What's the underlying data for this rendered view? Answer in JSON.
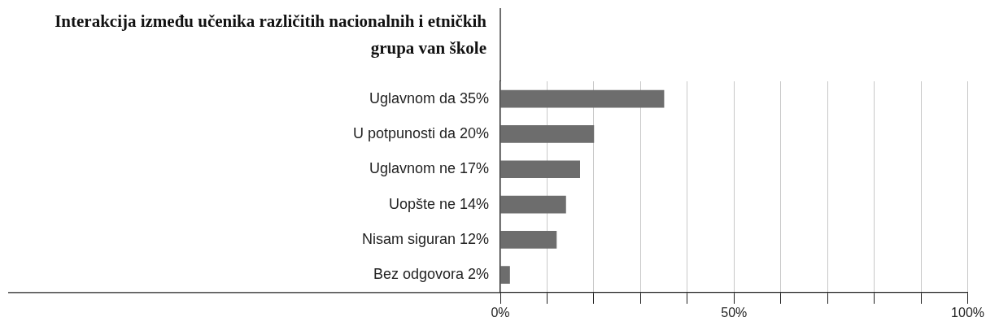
{
  "chart_data": {
    "type": "bar",
    "orientation": "horizontal",
    "title": "Interakcija između učenika različitih nacionalnih i etničkih grupa van škole",
    "categories": [
      "Uglavnom da 35%",
      "U potpunosti da 20%",
      "Uglavnom ne 17%",
      "Uopšte ne 14%",
      "Nisam siguran 12%",
      "Bez odgovora 2%"
    ],
    "values": [
      35,
      20,
      17,
      14,
      12,
      2
    ],
    "color": "#6d6d6d",
    "xlim": [
      0,
      100
    ],
    "xticks": [
      {
        "value": 0,
        "label": "0%"
      },
      {
        "value": 10,
        "label": null
      },
      {
        "value": 20,
        "label": null
      },
      {
        "value": 30,
        "label": null
      },
      {
        "value": 40,
        "label": null
      },
      {
        "value": 50,
        "label": "50%"
      },
      {
        "value": 60,
        "label": null
      },
      {
        "value": 70,
        "label": null
      },
      {
        "value": 80,
        "label": null
      },
      {
        "value": 90,
        "label": null
      },
      {
        "value": 100,
        "label": "100%"
      }
    ],
    "grid": "x",
    "legend": false
  }
}
